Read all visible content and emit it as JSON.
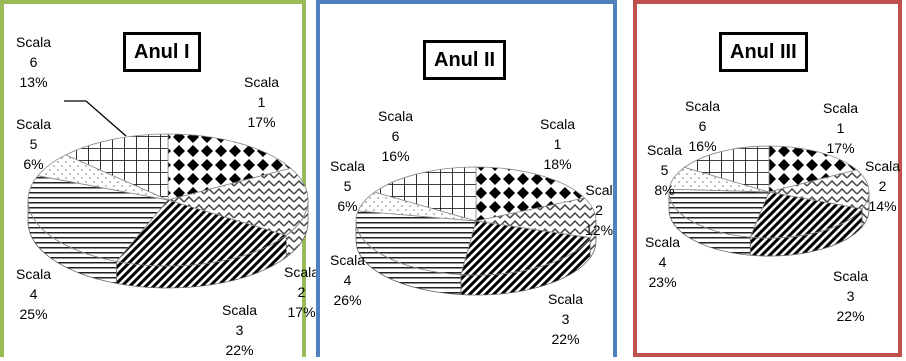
{
  "chart_data": [
    {
      "type": "pie",
      "title": "Anul I",
      "frame_color": "#9bbb59",
      "categories": [
        "Scala 1",
        "Scala 2",
        "Scala 3",
        "Scala 4",
        "Scala 5",
        "Scala 6"
      ],
      "values": [
        17,
        17,
        22,
        25,
        6,
        13
      ],
      "labels": [
        {
          "name": "Scala",
          "num": "1",
          "pct": "17%"
        },
        {
          "name": "Scala",
          "num": "2",
          "pct": "17%"
        },
        {
          "name": "Scala",
          "num": "3",
          "pct": "22%"
        },
        {
          "name": "Scala",
          "num": "4",
          "pct": "25%"
        },
        {
          "name": "Scala",
          "num": "5",
          "pct": "6%"
        },
        {
          "name": "Scala",
          "num": "6",
          "pct": "13%"
        }
      ]
    },
    {
      "type": "pie",
      "title": "Anul II",
      "frame_color": "#4f81bd",
      "categories": [
        "Scala 1",
        "Scala 2",
        "Scala 3",
        "Scala 4",
        "Scala 5",
        "Scala 6"
      ],
      "values": [
        18,
        12,
        22,
        26,
        6,
        16
      ],
      "labels": [
        {
          "name": "Scala",
          "num": "1",
          "pct": "18%"
        },
        {
          "name": "Scal",
          "num": "2",
          "pct": "12%"
        },
        {
          "name": "Scala",
          "num": "3",
          "pct": "22%"
        },
        {
          "name": "Scala",
          "num": "4",
          "pct": "26%"
        },
        {
          "name": "Scala",
          "num": "5",
          "pct": "6%"
        },
        {
          "name": "Scala",
          "num": "6",
          "pct": "16%"
        }
      ]
    },
    {
      "type": "pie",
      "title": "Anul III",
      "frame_color": "#c0504d",
      "categories": [
        "Scala 1",
        "Scala 2",
        "Scala 3",
        "Scala 4",
        "Scala 5",
        "Scala 6"
      ],
      "values": [
        17,
        14,
        22,
        23,
        8,
        16
      ],
      "labels": [
        {
          "name": "Scala",
          "num": "1",
          "pct": "17%"
        },
        {
          "name": "Scala",
          "num": "2",
          "pct": "14%"
        },
        {
          "name": "Scala",
          "num": "3",
          "pct": "22%"
        },
        {
          "name": "Scala",
          "num": "4",
          "pct": "23%"
        },
        {
          "name": "Scala",
          "num": "5",
          "pct": "8%"
        },
        {
          "name": "Scala",
          "num": "6",
          "pct": "16%"
        }
      ]
    }
  ]
}
